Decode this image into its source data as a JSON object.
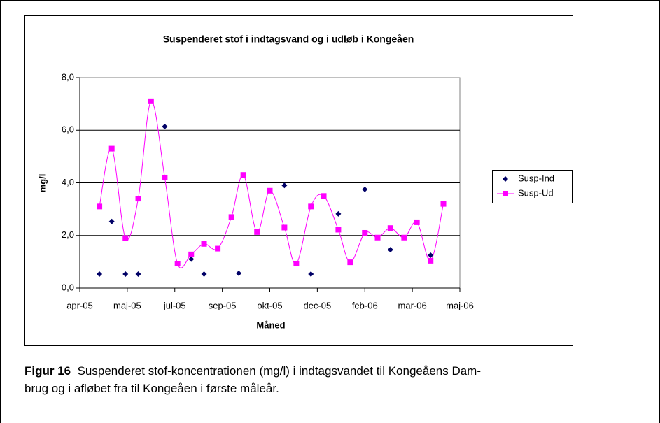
{
  "chart_data": {
    "type": "scatter",
    "title": "Suspenderet stof i indtagsvand og i udløb i Kongeåen",
    "xlabel": "Måned",
    "ylabel": "mg/l",
    "xlim": [
      0,
      416
    ],
    "xticks": [
      {
        "value": 0,
        "label": "apr-05"
      },
      {
        "value": 52,
        "label": "maj-05"
      },
      {
        "value": 104,
        "label": "jul-05"
      },
      {
        "value": 156,
        "label": "sep-05"
      },
      {
        "value": 208,
        "label": "okt-05"
      },
      {
        "value": 260,
        "label": "dec-05"
      },
      {
        "value": 312,
        "label": "feb-06"
      },
      {
        "value": 364,
        "label": "mar-06"
      },
      {
        "value": 416,
        "label": "maj-06"
      }
    ],
    "ylim": [
      0,
      8
    ],
    "yticks": [
      {
        "value": 0,
        "label": "0,0"
      },
      {
        "value": 2,
        "label": "2,0"
      },
      {
        "value": 4,
        "label": "4,0"
      },
      {
        "value": 6,
        "label": "6,0"
      },
      {
        "value": 8,
        "label": "8,0"
      }
    ],
    "grid": true,
    "legend": "right",
    "series": [
      {
        "name": "Susp-Ind",
        "color": "#000066",
        "marker": "diamond",
        "line": false,
        "x": [
          21.5,
          35,
          50,
          64,
          93,
          122,
          136,
          174,
          224,
          253,
          283,
          312,
          340,
          384
        ],
        "values": [
          0.53,
          2.53,
          0.53,
          0.53,
          6.14,
          1.1,
          0.53,
          0.56,
          3.9,
          0.53,
          2.82,
          3.75,
          1.46,
          1.25
        ]
      },
      {
        "name": "Susp-Ud",
        "color": "#ff00ff",
        "marker": "square",
        "line": true,
        "x": [
          21.5,
          35,
          50,
          64,
          78,
          93,
          107,
          122,
          136,
          151,
          166,
          179,
          194,
          208,
          224,
          237,
          253,
          267,
          283,
          296,
          312,
          326,
          340,
          355,
          369,
          384,
          398
        ],
        "values": [
          3.1,
          5.3,
          1.9,
          3.4,
          7.1,
          4.2,
          0.93,
          1.28,
          1.68,
          1.5,
          2.7,
          4.3,
          2.13,
          3.7,
          2.3,
          0.93,
          3.1,
          3.5,
          2.22,
          0.98,
          2.1,
          1.92,
          2.28,
          1.92,
          2.5,
          1.04,
          3.2
        ]
      }
    ]
  },
  "caption": {
    "label": "Figur 16",
    "lines": [
      "Suspenderet stof-koncentrationen (mg/l) i indtagsvandet til Kongeåens Dam-",
      "brug og i afløbet fra til Kongeåen i første måleår."
    ]
  }
}
